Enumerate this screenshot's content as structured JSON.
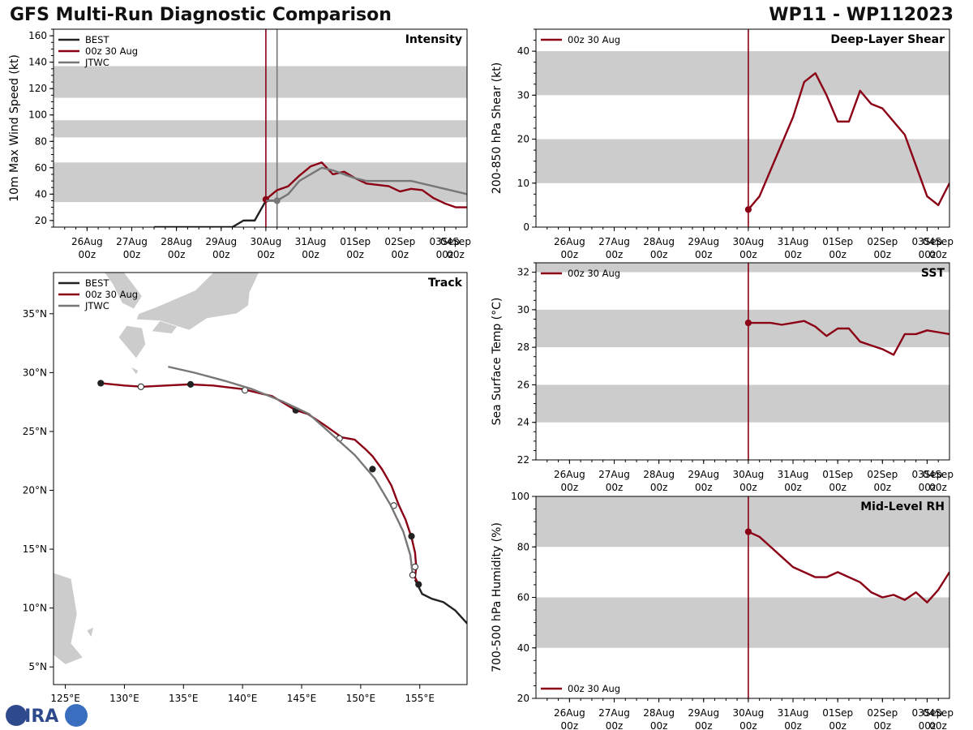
{
  "header": {
    "title": "GFS Multi-Run Diagnostic Comparison",
    "storm": "WP11 - WP112023"
  },
  "logo": {
    "text": "CIRA",
    "name": "cira-logo"
  },
  "colors": {
    "best": "#222222",
    "run": "#8b0014",
    "jtwc": "#777777",
    "band": "#cccccc",
    "land": "#cccccc"
  },
  "chart_data": [
    {
      "id": "intensity",
      "type": "line",
      "title": "Intensity",
      "ylabel": "10m Max Wind Speed (kt)",
      "xlabel": "",
      "xlim": [
        0,
        9.25
      ],
      "ylim": [
        15,
        165
      ],
      "yticks": [
        20,
        40,
        60,
        80,
        100,
        120,
        140,
        160
      ],
      "xticks": [
        {
          "x": 0.75,
          "top": "26Aug",
          "bottom": "00z"
        },
        {
          "x": 1.75,
          "top": "27Aug",
          "bottom": "00z"
        },
        {
          "x": 2.75,
          "top": "28Aug",
          "bottom": "00z"
        },
        {
          "x": 3.75,
          "top": "29Aug",
          "bottom": "00z"
        },
        {
          "x": 4.75,
          "top": "30Aug",
          "bottom": "00z"
        },
        {
          "x": 5.75,
          "top": "31Aug",
          "bottom": "00z"
        },
        {
          "x": 6.75,
          "top": "01Sep",
          "bottom": "00z"
        },
        {
          "x": 7.75,
          "top": "02Sep",
          "bottom": "00z"
        },
        {
          "x": 8.75,
          "top": "03Sep",
          "bottom": "00z"
        },
        {
          "x": 9.75,
          "top": "04Sep",
          "bottom": "00z"
        }
      ],
      "bands": [
        [
          34,
          64
        ],
        [
          83,
          96
        ],
        [
          113,
          137
        ]
      ],
      "vlines": [
        {
          "x": 4.75,
          "series": "run"
        },
        {
          "x": 5.0,
          "series": "jtwc"
        }
      ],
      "legend": [
        "BEST",
        "00z 30 Aug",
        "JTWC"
      ],
      "series": [
        {
          "name": "BEST",
          "key": "best",
          "x": [
            2.25,
            2.5,
            2.75,
            3.0,
            3.25,
            3.5,
            3.75,
            4.0,
            4.25,
            4.5,
            4.75,
            5.0
          ],
          "y": [
            15,
            15,
            15,
            15,
            15,
            15,
            15,
            15,
            20,
            20,
            35,
            35
          ]
        },
        {
          "name": "00z 30 Aug",
          "key": "run",
          "x": [
            4.75,
            5.0,
            5.25,
            5.5,
            5.75,
            6.0,
            6.25,
            6.5,
            6.75,
            7.0,
            7.25,
            7.5,
            7.75,
            8.0,
            8.25,
            8.5,
            8.75,
            9.0,
            9.25
          ],
          "y": [
            36,
            43,
            46,
            54,
            61,
            64,
            55,
            57,
            52,
            48,
            47,
            46,
            42,
            44,
            43,
            37,
            33,
            30,
            30
          ],
          "markers": [
            4.75
          ]
        },
        {
          "name": "JTWC",
          "key": "jtwc",
          "x": [
            4.75,
            5.0,
            5.25,
            5.5,
            5.75,
            6.0,
            6.25,
            6.5,
            6.75,
            7.0,
            7.25,
            7.5,
            7.75,
            8.0,
            8.25,
            8.5,
            8.75,
            9.0,
            9.25
          ],
          "y": [
            35,
            35,
            40,
            50,
            55,
            60,
            58,
            55,
            52,
            50,
            50,
            50,
            50,
            50,
            48,
            46,
            44,
            42,
            40
          ],
          "markers": [
            5.0
          ]
        }
      ]
    },
    {
      "id": "shear",
      "type": "line",
      "title": "Deep-Layer Shear",
      "ylabel": "200-850 hPa Shear (kt)",
      "xlabel": "",
      "xlim": [
        0,
        9.25
      ],
      "ylim": [
        0,
        45
      ],
      "yticks": [
        0,
        10,
        20,
        30,
        40
      ],
      "xticks": [
        {
          "x": 0.75,
          "top": "26Aug",
          "bottom": "00z"
        },
        {
          "x": 1.75,
          "top": "27Aug",
          "bottom": "00z"
        },
        {
          "x": 2.75,
          "top": "28Aug",
          "bottom": "00z"
        },
        {
          "x": 3.75,
          "top": "29Aug",
          "bottom": "00z"
        },
        {
          "x": 4.75,
          "top": "30Aug",
          "bottom": "00z"
        },
        {
          "x": 5.75,
          "top": "31Aug",
          "bottom": "00z"
        },
        {
          "x": 6.75,
          "top": "01Sep",
          "bottom": "00z"
        },
        {
          "x": 7.75,
          "top": "02Sep",
          "bottom": "00z"
        },
        {
          "x": 8.75,
          "top": "03Sep",
          "bottom": "00z"
        },
        {
          "x": 9.75,
          "top": "04Sep",
          "bottom": "00z"
        }
      ],
      "bands": [
        [
          10,
          20
        ],
        [
          30,
          40
        ]
      ],
      "vlines": [
        {
          "x": 4.75,
          "series": "run"
        }
      ],
      "legend": [
        "00z 30 Aug"
      ],
      "series": [
        {
          "name": "00z 30 Aug",
          "key": "run",
          "x": [
            4.75,
            5.0,
            5.25,
            5.5,
            5.75,
            6.0,
            6.25,
            6.5,
            6.75,
            7.0,
            7.25,
            7.5,
            7.75,
            8.0,
            8.25,
            8.5,
            8.75,
            9.0,
            9.25
          ],
          "y": [
            4,
            7,
            13,
            19,
            25,
            33,
            35,
            30,
            24,
            24,
            31,
            28,
            27,
            24,
            21,
            14,
            7,
            5,
            10
          ],
          "markers": [
            4.75
          ]
        }
      ]
    },
    {
      "id": "track",
      "type": "line",
      "title": "Track",
      "ylabel": "",
      "xlabel": "",
      "xlim": [
        124,
        159
      ],
      "ylim": [
        3.5,
        38.5
      ],
      "xticks": [
        125,
        130,
        135,
        140,
        145,
        150,
        155
      ],
      "xticklabels": [
        "125°E",
        "130°E",
        "135°E",
        "140°E",
        "145°E",
        "150°E",
        "155°E"
      ],
      "yticks": [
        5,
        10,
        15,
        20,
        25,
        30,
        35
      ],
      "yticklabels": [
        "5°N",
        "10°N",
        "15°N",
        "20°N",
        "25°N",
        "30°N",
        "35°N"
      ],
      "legend": [
        "BEST",
        "00z 30 Aug",
        "JTWC"
      ],
      "series": [
        {
          "name": "BEST",
          "key": "best",
          "x": [
            159.0,
            158.0,
            157.0,
            156.0,
            155.2,
            154.6
          ],
          "y": [
            8.7,
            9.8,
            10.5,
            10.8,
            11.2,
            12.4
          ]
        },
        {
          "name": "00z 30 Aug",
          "key": "run",
          "x": [
            154.9,
            154.6,
            154.7,
            154.6,
            154.3,
            153.8,
            153.2,
            152.6,
            151.8,
            151.0,
            150.4,
            149.5,
            148.4,
            147.0,
            145.5,
            144.5,
            142.5,
            140.0,
            137.5,
            135.5,
            133.5,
            131.5,
            130.0,
            128.0
          ],
          "y": [
            12.0,
            12.6,
            13.5,
            14.7,
            16.0,
            17.5,
            18.8,
            20.4,
            21.8,
            22.9,
            23.5,
            24.3,
            24.5,
            25.5,
            26.5,
            26.8,
            28.0,
            28.6,
            28.9,
            29.0,
            28.9,
            28.8,
            28.9,
            29.1
          ],
          "markers": [
            154.9,
            154.6,
            154.3,
            152.8,
            151.0,
            148.2,
            144.5,
            140.2,
            135.6,
            131.4,
            128.0
          ],
          "marker_y": [
            12.0,
            13.5,
            16.1,
            18.7,
            21.8,
            24.4,
            26.8,
            28.5,
            29.0,
            28.8,
            29.1
          ],
          "marker_fill": [
            true,
            false,
            true,
            false,
            true,
            false,
            true,
            false,
            true,
            false,
            true
          ]
        },
        {
          "name": "JTWC",
          "key": "jtwc",
          "x": [
            154.4,
            154.2,
            153.6,
            152.5,
            151.2,
            149.5,
            147.5,
            145.6,
            143.5,
            140.8,
            138.5,
            135.9,
            133.7
          ],
          "y": [
            12.8,
            14.5,
            16.5,
            18.8,
            21.0,
            23.0,
            24.8,
            26.5,
            27.5,
            28.6,
            29.3,
            30.0,
            30.5
          ],
          "markers": [
            154.4
          ],
          "marker_y": [
            12.8
          ],
          "marker_fill": [
            false
          ]
        }
      ]
    },
    {
      "id": "sst",
      "type": "line",
      "title": "SST",
      "ylabel": "Sea Surface Temp (°C)",
      "xlabel": "",
      "xlim": [
        0,
        9.25
      ],
      "ylim": [
        22,
        32.5
      ],
      "yticks": [
        22,
        24,
        26,
        28,
        30,
        32
      ],
      "xticks": [
        {
          "x": 0.75,
          "top": "26Aug",
          "bottom": "00z"
        },
        {
          "x": 1.75,
          "top": "27Aug",
          "bottom": "00z"
        },
        {
          "x": 2.75,
          "top": "28Aug",
          "bottom": "00z"
        },
        {
          "x": 3.75,
          "top": "29Aug",
          "bottom": "00z"
        },
        {
          "x": 4.75,
          "top": "30Aug",
          "bottom": "00z"
        },
        {
          "x": 5.75,
          "top": "31Aug",
          "bottom": "00z"
        },
        {
          "x": 6.75,
          "top": "01Sep",
          "bottom": "00z"
        },
        {
          "x": 7.75,
          "top": "02Sep",
          "bottom": "00z"
        },
        {
          "x": 8.75,
          "top": "03Sep",
          "bottom": "00z"
        },
        {
          "x": 9.75,
          "top": "04Sep",
          "bottom": "00z"
        }
      ],
      "bands": [
        [
          24,
          26
        ],
        [
          28,
          30
        ],
        [
          32,
          34
        ]
      ],
      "vlines": [
        {
          "x": 4.75,
          "series": "run"
        }
      ],
      "legend": [
        "00z 30 Aug"
      ],
      "series": [
        {
          "name": "00z 30 Aug",
          "key": "run",
          "x": [
            4.75,
            5.0,
            5.25,
            5.5,
            5.75,
            6.0,
            6.25,
            6.5,
            6.75,
            7.0,
            7.25,
            7.5,
            7.75,
            8.0,
            8.25,
            8.5,
            8.75,
            9.0,
            9.25
          ],
          "y": [
            29.3,
            29.3,
            29.3,
            29.2,
            29.3,
            29.4,
            29.1,
            28.6,
            29.0,
            29.0,
            28.3,
            28.1,
            27.9,
            27.6,
            28.7,
            28.7,
            28.9,
            28.8,
            28.7
          ],
          "markers": [
            4.75
          ]
        }
      ]
    },
    {
      "id": "rh",
      "type": "line",
      "title": "Mid-Level RH",
      "ylabel": "700-500 hPa Humidity (%)",
      "xlabel": "",
      "xlim": [
        0,
        9.25
      ],
      "ylim": [
        20,
        100
      ],
      "yticks": [
        20,
        40,
        60,
        80,
        100
      ],
      "xticks": [
        {
          "x": 0.75,
          "top": "26Aug",
          "bottom": "00z"
        },
        {
          "x": 1.75,
          "top": "27Aug",
          "bottom": "00z"
        },
        {
          "x": 2.75,
          "top": "28Aug",
          "bottom": "00z"
        },
        {
          "x": 3.75,
          "top": "29Aug",
          "bottom": "00z"
        },
        {
          "x": 4.75,
          "top": "30Aug",
          "bottom": "00z"
        },
        {
          "x": 5.75,
          "top": "31Aug",
          "bottom": "00z"
        },
        {
          "x": 6.75,
          "top": "01Sep",
          "bottom": "00z"
        },
        {
          "x": 7.75,
          "top": "02Sep",
          "bottom": "00z"
        },
        {
          "x": 8.75,
          "top": "03Sep",
          "bottom": "00z"
        },
        {
          "x": 9.75,
          "top": "04Sep",
          "bottom": "00z"
        }
      ],
      "bands": [
        [
          40,
          60
        ],
        [
          80,
          100
        ]
      ],
      "vlines": [
        {
          "x": 4.75,
          "series": "run"
        }
      ],
      "legend": [
        "00z 30 Aug"
      ],
      "legend_position": "bottom-left",
      "series": [
        {
          "name": "00z 30 Aug",
          "key": "run",
          "x": [
            4.75,
            5.0,
            5.25,
            5.5,
            5.75,
            6.0,
            6.25,
            6.5,
            6.75,
            7.0,
            7.25,
            7.5,
            7.75,
            8.0,
            8.25,
            8.5,
            8.75,
            9.0,
            9.25
          ],
          "y": [
            86,
            84,
            80,
            76,
            72,
            70,
            68,
            68,
            70,
            68,
            66,
            62,
            60,
            61,
            59,
            62,
            58,
            63,
            70
          ],
          "markers": [
            4.75
          ]
        }
      ]
    }
  ]
}
